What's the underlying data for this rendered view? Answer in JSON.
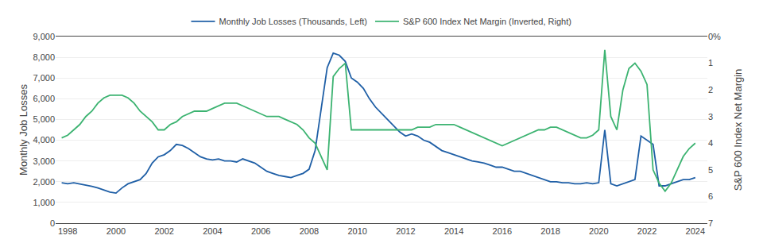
{
  "chart_data": {
    "type": "line",
    "ylabel": "Monthly Job Losses",
    "y2label": "S&P 600 Index Net Margin",
    "x": [
      1997.75,
      1998.0,
      1998.25,
      1998.5,
      1998.75,
      1999.0,
      1999.25,
      1999.5,
      1999.75,
      2000.0,
      2000.25,
      2000.5,
      2000.75,
      2001.0,
      2001.25,
      2001.5,
      2001.75,
      2002.0,
      2002.25,
      2002.5,
      2002.75,
      2003.0,
      2003.25,
      2003.5,
      2003.75,
      2004.0,
      2004.25,
      2004.5,
      2004.75,
      2005.0,
      2005.25,
      2005.5,
      2005.75,
      2006.0,
      2006.25,
      2006.5,
      2006.75,
      2007.0,
      2007.25,
      2007.5,
      2007.75,
      2008.0,
      2008.25,
      2008.5,
      2008.75,
      2009.0,
      2009.25,
      2009.5,
      2009.75,
      2010.0,
      2010.25,
      2010.5,
      2010.75,
      2011.0,
      2011.25,
      2011.5,
      2011.75,
      2012.0,
      2012.25,
      2012.5,
      2012.75,
      2013.0,
      2013.25,
      2013.5,
      2013.75,
      2014.0,
      2014.25,
      2014.5,
      2014.75,
      2015.0,
      2015.25,
      2015.5,
      2015.75,
      2016.0,
      2016.25,
      2016.5,
      2016.75,
      2017.0,
      2017.25,
      2017.5,
      2017.75,
      2018.0,
      2018.25,
      2018.5,
      2018.75,
      2019.0,
      2019.25,
      2019.5,
      2019.75,
      2020.0,
      2020.25,
      2020.5,
      2020.75,
      2021.0,
      2021.25,
      2021.5,
      2021.75,
      2022.0,
      2022.25,
      2022.5,
      2022.75,
      2023.0,
      2023.25,
      2023.5,
      2023.75,
      2024.0
    ],
    "series": [
      {
        "name": "Monthly Job Losses (Thousands, Left)",
        "color": "#1f5fa6",
        "values": [
          1950,
          1900,
          1950,
          1900,
          1850,
          1780,
          1700,
          1600,
          1500,
          1450,
          1700,
          1900,
          2000,
          2100,
          2400,
          2900,
          3200,
          3300,
          3500,
          3800,
          3750,
          3600,
          3400,
          3200,
          3100,
          3050,
          3100,
          3000,
          3000,
          2950,
          3100,
          3000,
          2900,
          2700,
          2500,
          2400,
          2300,
          2250,
          2200,
          2300,
          2400,
          2600,
          3500,
          5500,
          7500,
          8200,
          8100,
          7800,
          7000,
          6800,
          6500,
          6000,
          5600,
          5300,
          5000,
          4700,
          4400,
          4200,
          4300,
          4200,
          4000,
          3900,
          3700,
          3500,
          3400,
          3300,
          3200,
          3100,
          3000,
          2950,
          2900,
          2800,
          2700,
          2700,
          2600,
          2500,
          2500,
          2400,
          2300,
          2200,
          2100,
          2000,
          2000,
          1950,
          1950,
          1900,
          1900,
          1950,
          1900,
          1950,
          4500,
          1900,
          1800,
          1900,
          2000,
          2100,
          4200,
          4000,
          3800,
          1800,
          1800,
          1900,
          2000,
          2100,
          2100,
          2200
        ]
      },
      {
        "name": "S&P 600 Index Net Margin (Inverted, Right)",
        "color": "#3cb371",
        "axis": "y2",
        "values": [
          3.8,
          3.7,
          3.5,
          3.3,
          3.0,
          2.8,
          2.5,
          2.3,
          2.2,
          2.2,
          2.2,
          2.3,
          2.5,
          2.8,
          3.0,
          3.2,
          3.5,
          3.5,
          3.3,
          3.2,
          3.0,
          2.9,
          2.8,
          2.8,
          2.8,
          2.7,
          2.6,
          2.5,
          2.5,
          2.5,
          2.6,
          2.7,
          2.8,
          2.9,
          3.0,
          3.0,
          3.0,
          3.1,
          3.2,
          3.3,
          3.5,
          3.8,
          4.0,
          4.5,
          5.0,
          1.5,
          1.2,
          1.0,
          3.5,
          3.5,
          3.5,
          3.5,
          3.5,
          3.5,
          3.5,
          3.5,
          3.5,
          3.5,
          3.5,
          3.4,
          3.4,
          3.4,
          3.3,
          3.3,
          3.3,
          3.3,
          3.4,
          3.5,
          3.6,
          3.7,
          3.8,
          3.9,
          4.0,
          4.1,
          4.0,
          3.9,
          3.8,
          3.7,
          3.6,
          3.5,
          3.5,
          3.4,
          3.4,
          3.5,
          3.6,
          3.7,
          3.8,
          3.8,
          3.7,
          3.5,
          0.5,
          3.0,
          3.5,
          2.0,
          1.2,
          1.0,
          1.3,
          1.8,
          5.0,
          5.5,
          5.8,
          5.5,
          5.0,
          4.5,
          4.2,
          4.0
        ]
      }
    ],
    "xlim": [
      1997.5,
      2024.5
    ],
    "xticks": [
      1998,
      2000,
      2002,
      2004,
      2006,
      2008,
      2010,
      2012,
      2014,
      2016,
      2018,
      2020,
      2022,
      2024
    ],
    "ylim": [
      0,
      9000
    ],
    "yticks": [
      0,
      {
        "value": 1000,
        "label": "1,000"
      },
      {
        "value": 2000,
        "label": "2,000"
      },
      {
        "value": 3000,
        "label": "3,000"
      },
      {
        "value": 4000,
        "label": "4,000"
      },
      {
        "value": 5000,
        "label": "5,000"
      },
      {
        "value": 6000,
        "label": "6,000"
      },
      {
        "value": 7000,
        "label": "7,000"
      },
      {
        "value": 8000,
        "label": "8,000"
      },
      {
        "value": 9000,
        "label": "9,000"
      }
    ],
    "y2lim": [
      7,
      0
    ],
    "y2ticks": [
      {
        "value": 0,
        "label": "0%"
      },
      1,
      2,
      3,
      4,
      5,
      6,
      7
    ],
    "grid": true,
    "legend": "upper center"
  }
}
